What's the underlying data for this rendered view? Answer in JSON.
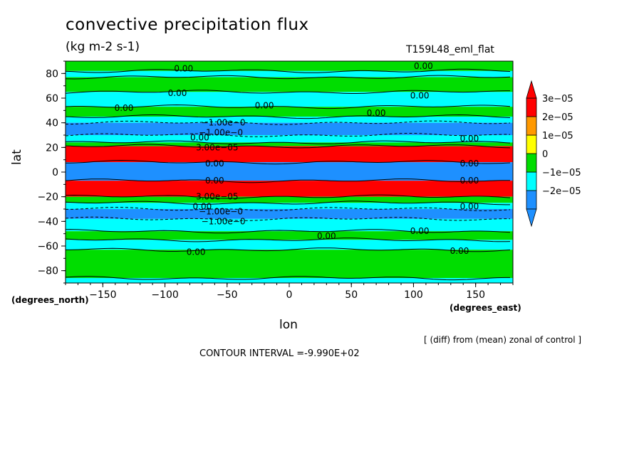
{
  "header": {
    "title": "convective precipitation flux",
    "units": "(kg m-2 s-1)",
    "run_name": "T159L48_eml_flat"
  },
  "footer": {
    "note": "[ (diff) from (mean) zonal of control ]",
    "contour_interval": "CONTOUR INTERVAL =-9.990E+02"
  },
  "chart_data": {
    "type": "heatmap",
    "title": "convective precipitation flux",
    "subtitle": "(kg m-2 s-1)",
    "xlabel": "lon",
    "ylabel": "lat",
    "x_unit_label": "(degrees_east)",
    "y_unit_label": "(degrees_north)",
    "xlim": [
      -180,
      180
    ],
    "ylim": [
      -90,
      90
    ],
    "x_ticks": [
      -150,
      -100,
      -50,
      0,
      50,
      100,
      150
    ],
    "y_ticks": [
      80,
      60,
      40,
      20,
      0,
      -20,
      -40,
      -60,
      -80
    ],
    "x_tick_labels": [
      "−150",
      "−100",
      "−50",
      "0",
      "50",
      "100",
      "150"
    ],
    "y_tick_labels": [
      "80",
      "60",
      "40",
      "20",
      "0",
      "−20",
      "−40",
      "−60",
      "−80"
    ],
    "colorbar": {
      "levels": [
        -2e-05,
        -1e-05,
        0,
        1e-05,
        2e-05,
        3e-05
      ],
      "labels": [
        "−2e−05",
        "−1e−05",
        "0",
        "1e−05",
        "2e−05",
        "3e−05"
      ],
      "colors": [
        "#1e90ff",
        "#00ffff",
        "#00dd00",
        "#ffff00",
        "#ff9900",
        "#ff0000"
      ],
      "extend": "both"
    },
    "bands": [
      {
        "lat_top": 90,
        "lat_bottom": 82,
        "color": "#00dd00"
      },
      {
        "lat_top": 82,
        "lat_bottom": 77,
        "color": "#00ffff"
      },
      {
        "lat_top": 77,
        "lat_bottom": 65,
        "color": "#00dd00"
      },
      {
        "lat_top": 65,
        "lat_bottom": 53,
        "color": "#00ffff"
      },
      {
        "lat_top": 53,
        "lat_bottom": 45,
        "color": "#00dd00"
      },
      {
        "lat_top": 45,
        "lat_bottom": 40,
        "color": "#00ffff"
      },
      {
        "lat_top": 40,
        "lat_bottom": 30,
        "color": "#1e90ff"
      },
      {
        "lat_top": 30,
        "lat_bottom": 24,
        "color": "#00ffff"
      },
      {
        "lat_top": 24,
        "lat_bottom": 21,
        "color": "#00dd00"
      },
      {
        "lat_top": 21,
        "lat_bottom": 8,
        "color": "#ff0000"
      },
      {
        "lat_top": 8,
        "lat_bottom": -7,
        "color": "#1e90ff"
      },
      {
        "lat_top": -7,
        "lat_bottom": -20,
        "color": "#ff0000"
      },
      {
        "lat_top": -20,
        "lat_bottom": -25,
        "color": "#00dd00"
      },
      {
        "lat_top": -25,
        "lat_bottom": -30,
        "color": "#00ffff"
      },
      {
        "lat_top": -30,
        "lat_bottom": -38,
        "color": "#1e90ff"
      },
      {
        "lat_top": -38,
        "lat_bottom": -48,
        "color": "#00ffff"
      },
      {
        "lat_top": -48,
        "lat_bottom": -55,
        "color": "#00dd00"
      },
      {
        "lat_top": -55,
        "lat_bottom": -63,
        "color": "#00ffff"
      },
      {
        "lat_top": -63,
        "lat_bottom": -86,
        "color": "#00dd00"
      },
      {
        "lat_top": -86,
        "lat_bottom": -90,
        "color": "#00ffff"
      }
    ],
    "contour_labels": [
      {
        "text": "0.00",
        "lon": -85,
        "lat": 84
      },
      {
        "text": "0.00",
        "lon": 108,
        "lat": 86
      },
      {
        "text": "0.00",
        "lon": -90,
        "lat": 64
      },
      {
        "text": "0.00",
        "lon": 105,
        "lat": 62
      },
      {
        "text": "0.00",
        "lon": -133,
        "lat": 52
      },
      {
        "text": "0.00",
        "lon": -20,
        "lat": 54
      },
      {
        "text": "0.00",
        "lon": 70,
        "lat": 48
      },
      {
        "text": "−1.00e−0",
        "lon": -53,
        "lat": 40
      },
      {
        "text": "−1.00e−0",
        "lon": -55,
        "lat": 32
      },
      {
        "text": "0.00",
        "lon": 145,
        "lat": 27
      },
      {
        "text": "0.00",
        "lon": -72,
        "lat": 28
      },
      {
        "text": "3.00e−05",
        "lon": -58,
        "lat": 20
      },
      {
        "text": "0.00",
        "lon": 145,
        "lat": 7
      },
      {
        "text": "0.00",
        "lon": -60,
        "lat": 7
      },
      {
        "text": "0.00",
        "lon": -60,
        "lat": -7
      },
      {
        "text": "0.00",
        "lon": 145,
        "lat": -7
      },
      {
        "text": "3.00e−05",
        "lon": -58,
        "lat": -20
      },
      {
        "text": "0.00",
        "lon": -70,
        "lat": -28
      },
      {
        "text": "0.00",
        "lon": 145,
        "lat": -28
      },
      {
        "text": "−1.00e−0",
        "lon": -55,
        "lat": -32
      },
      {
        "text": "−1.00e−0",
        "lon": -53,
        "lat": -40
      },
      {
        "text": "0.00",
        "lon": 105,
        "lat": -48
      },
      {
        "text": "0.00",
        "lon": 30,
        "lat": -52
      },
      {
        "text": "0.00",
        "lon": -75,
        "lat": -65
      },
      {
        "text": "0.00",
        "lon": 137,
        "lat": -64
      }
    ]
  }
}
